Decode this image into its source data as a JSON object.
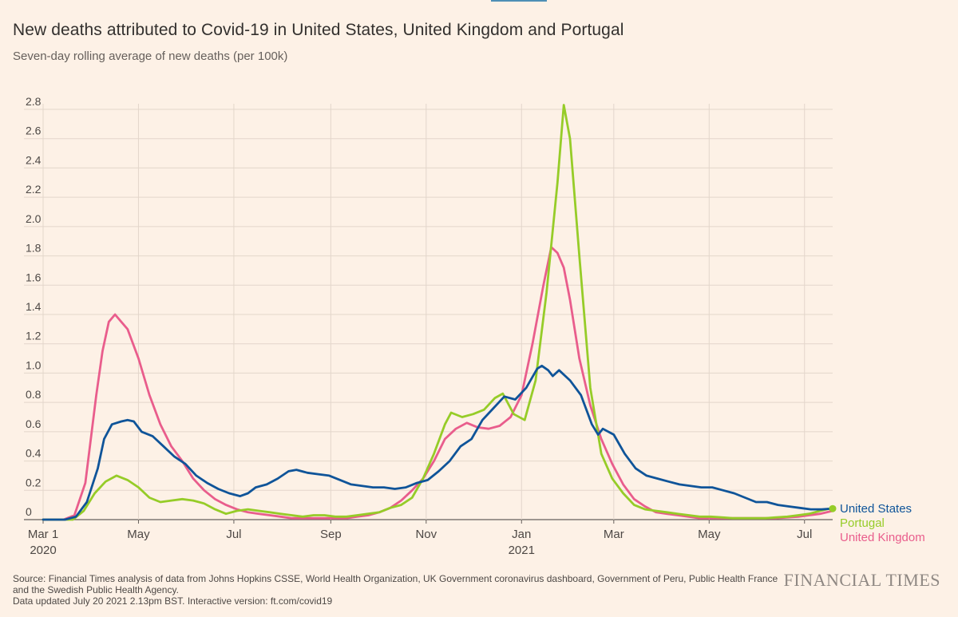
{
  "title": "New deaths attributed to Covid-19 in United States, United Kingdom and Portugal",
  "subtitle": "Seven-day rolling average of new deaths (per 100k)",
  "source_lines": [
    "Source: Financial Times analysis of data from Johns Hopkins CSSE, World Health Organization, UK Government coronavirus dashboard, Government of Peru, Public Health France",
    "and the Swedish Public Health Agency.",
    "Data updated July 20 2021 2.13pm BST. Interactive version: ft.com/covid19"
  ],
  "logo": "FINANCIAL TIMES",
  "chart_data": {
    "type": "line",
    "ylim": [
      0,
      2.8
    ],
    "grid": true,
    "y_ticks": [
      "0",
      "0.2",
      "0.4",
      "0.6",
      "0.8",
      "1.0",
      "1.2",
      "1.4",
      "1.6",
      "1.8",
      "2.0",
      "2.2",
      "2.4",
      "2.6",
      "2.8"
    ],
    "x_ticks": [
      {
        "date": "2020-03-01",
        "label": "Mar 1",
        "sublabel": "2020"
      },
      {
        "date": "2020-05-01",
        "label": "May",
        "sublabel": ""
      },
      {
        "date": "2020-07-01",
        "label": "Jul",
        "sublabel": ""
      },
      {
        "date": "2020-09-01",
        "label": "Sep",
        "sublabel": ""
      },
      {
        "date": "2020-11-01",
        "label": "Nov",
        "sublabel": ""
      },
      {
        "date": "2021-01-01",
        "label": "Jan",
        "sublabel": "2021"
      },
      {
        "date": "2021-03-01",
        "label": "Mar",
        "sublabel": ""
      },
      {
        "date": "2021-05-01",
        "label": "May",
        "sublabel": ""
      },
      {
        "date": "2021-07-01",
        "label": "Jul",
        "sublabel": ""
      }
    ],
    "x_range": [
      "2020-03-01",
      "2021-07-19"
    ],
    "series": [
      {
        "name": "United States",
        "color": "#0f5499",
        "points": [
          [
            "2020-03-01",
            0
          ],
          [
            "2020-03-15",
            0.0
          ],
          [
            "2020-03-22",
            0.02
          ],
          [
            "2020-03-29",
            0.12
          ],
          [
            "2020-04-05",
            0.35
          ],
          [
            "2020-04-09",
            0.55
          ],
          [
            "2020-04-14",
            0.65
          ],
          [
            "2020-04-20",
            0.67
          ],
          [
            "2020-04-24",
            0.68
          ],
          [
            "2020-04-28",
            0.67
          ],
          [
            "2020-05-03",
            0.6
          ],
          [
            "2020-05-10",
            0.57
          ],
          [
            "2020-05-17",
            0.5
          ],
          [
            "2020-05-24",
            0.43
          ],
          [
            "2020-05-31",
            0.38
          ],
          [
            "2020-06-07",
            0.3
          ],
          [
            "2020-06-14",
            0.25
          ],
          [
            "2020-06-21",
            0.21
          ],
          [
            "2020-06-28",
            0.18
          ],
          [
            "2020-07-05",
            0.16
          ],
          [
            "2020-07-10",
            0.18
          ],
          [
            "2020-07-15",
            0.22
          ],
          [
            "2020-07-22",
            0.24
          ],
          [
            "2020-07-29",
            0.28
          ],
          [
            "2020-08-05",
            0.33
          ],
          [
            "2020-08-10",
            0.34
          ],
          [
            "2020-08-17",
            0.32
          ],
          [
            "2020-08-24",
            0.31
          ],
          [
            "2020-08-31",
            0.3
          ],
          [
            "2020-09-07",
            0.27
          ],
          [
            "2020-09-14",
            0.24
          ],
          [
            "2020-09-21",
            0.23
          ],
          [
            "2020-09-28",
            0.22
          ],
          [
            "2020-10-05",
            0.22
          ],
          [
            "2020-10-12",
            0.21
          ],
          [
            "2020-10-19",
            0.22
          ],
          [
            "2020-10-26",
            0.25
          ],
          [
            "2020-11-02",
            0.27
          ],
          [
            "2020-11-09",
            0.33
          ],
          [
            "2020-11-16",
            0.4
          ],
          [
            "2020-11-23",
            0.5
          ],
          [
            "2020-11-30",
            0.55
          ],
          [
            "2020-12-07",
            0.68
          ],
          [
            "2020-12-14",
            0.76
          ],
          [
            "2020-12-21",
            0.84
          ],
          [
            "2020-12-28",
            0.82
          ],
          [
            "2021-01-04",
            0.9
          ],
          [
            "2021-01-11",
            1.03
          ],
          [
            "2021-01-14",
            1.05
          ],
          [
            "2021-01-18",
            1.02
          ],
          [
            "2021-01-21",
            0.98
          ],
          [
            "2021-01-25",
            1.02
          ],
          [
            "2021-02-01",
            0.95
          ],
          [
            "2021-02-08",
            0.85
          ],
          [
            "2021-02-15",
            0.65
          ],
          [
            "2021-02-19",
            0.58
          ],
          [
            "2021-02-22",
            0.62
          ],
          [
            "2021-03-01",
            0.58
          ],
          [
            "2021-03-08",
            0.45
          ],
          [
            "2021-03-15",
            0.35
          ],
          [
            "2021-03-22",
            0.3
          ],
          [
            "2021-03-29",
            0.28
          ],
          [
            "2021-04-05",
            0.26
          ],
          [
            "2021-04-12",
            0.24
          ],
          [
            "2021-04-19",
            0.23
          ],
          [
            "2021-04-26",
            0.22
          ],
          [
            "2021-05-03",
            0.22
          ],
          [
            "2021-05-10",
            0.2
          ],
          [
            "2021-05-17",
            0.18
          ],
          [
            "2021-05-24",
            0.15
          ],
          [
            "2021-05-31",
            0.12
          ],
          [
            "2021-06-07",
            0.12
          ],
          [
            "2021-06-14",
            0.1
          ],
          [
            "2021-06-21",
            0.09
          ],
          [
            "2021-06-28",
            0.08
          ],
          [
            "2021-07-05",
            0.07
          ],
          [
            "2021-07-12",
            0.07
          ],
          [
            "2021-07-19",
            0.075
          ]
        ]
      },
      {
        "name": "Portugal",
        "color": "#96cc28",
        "points": [
          [
            "2020-03-01",
            0
          ],
          [
            "2020-03-20",
            0.0
          ],
          [
            "2020-03-27",
            0.06
          ],
          [
            "2020-04-03",
            0.18
          ],
          [
            "2020-04-10",
            0.26
          ],
          [
            "2020-04-17",
            0.3
          ],
          [
            "2020-04-24",
            0.27
          ],
          [
            "2020-05-01",
            0.22
          ],
          [
            "2020-05-08",
            0.15
          ],
          [
            "2020-05-15",
            0.12
          ],
          [
            "2020-05-22",
            0.13
          ],
          [
            "2020-05-29",
            0.14
          ],
          [
            "2020-06-05",
            0.13
          ],
          [
            "2020-06-12",
            0.11
          ],
          [
            "2020-06-19",
            0.07
          ],
          [
            "2020-06-26",
            0.04
          ],
          [
            "2020-07-03",
            0.06
          ],
          [
            "2020-07-10",
            0.07
          ],
          [
            "2020-07-17",
            0.06
          ],
          [
            "2020-07-24",
            0.05
          ],
          [
            "2020-07-31",
            0.04
          ],
          [
            "2020-08-07",
            0.03
          ],
          [
            "2020-08-14",
            0.02
          ],
          [
            "2020-08-21",
            0.03
          ],
          [
            "2020-08-28",
            0.03
          ],
          [
            "2020-09-04",
            0.02
          ],
          [
            "2020-09-11",
            0.02
          ],
          [
            "2020-09-18",
            0.03
          ],
          [
            "2020-09-25",
            0.04
          ],
          [
            "2020-10-02",
            0.05
          ],
          [
            "2020-10-09",
            0.08
          ],
          [
            "2020-10-16",
            0.1
          ],
          [
            "2020-10-23",
            0.15
          ],
          [
            "2020-10-30",
            0.28
          ],
          [
            "2020-11-06",
            0.45
          ],
          [
            "2020-11-13",
            0.65
          ],
          [
            "2020-11-17",
            0.73
          ],
          [
            "2020-11-24",
            0.7
          ],
          [
            "2020-12-01",
            0.72
          ],
          [
            "2020-12-08",
            0.75
          ],
          [
            "2020-12-15",
            0.83
          ],
          [
            "2020-12-20",
            0.86
          ],
          [
            "2020-12-27",
            0.72
          ],
          [
            "2021-01-03",
            0.68
          ],
          [
            "2021-01-10",
            0.95
          ],
          [
            "2021-01-17",
            1.55
          ],
          [
            "2021-01-24",
            2.3
          ],
          [
            "2021-01-28",
            2.83
          ],
          [
            "2021-02-01",
            2.6
          ],
          [
            "2021-02-07",
            1.8
          ],
          [
            "2021-02-14",
            0.9
          ],
          [
            "2021-02-21",
            0.45
          ],
          [
            "2021-02-28",
            0.28
          ],
          [
            "2021-03-07",
            0.18
          ],
          [
            "2021-03-14",
            0.1
          ],
          [
            "2021-03-21",
            0.07
          ],
          [
            "2021-03-28",
            0.06
          ],
          [
            "2021-04-04",
            0.05
          ],
          [
            "2021-04-11",
            0.04
          ],
          [
            "2021-04-18",
            0.03
          ],
          [
            "2021-04-25",
            0.02
          ],
          [
            "2021-05-02",
            0.02
          ],
          [
            "2021-05-09",
            0.015
          ],
          [
            "2021-05-16",
            0.01
          ],
          [
            "2021-05-23",
            0.01
          ],
          [
            "2021-05-30",
            0.01
          ],
          [
            "2021-06-06",
            0.01
          ],
          [
            "2021-06-13",
            0.015
          ],
          [
            "2021-06-20",
            0.02
          ],
          [
            "2021-06-27",
            0.03
          ],
          [
            "2021-07-04",
            0.04
          ],
          [
            "2021-07-11",
            0.06
          ],
          [
            "2021-07-19",
            0.08
          ]
        ]
      },
      {
        "name": "United Kingdom",
        "color": "#e95d8c",
        "points": [
          [
            "2020-03-01",
            0
          ],
          [
            "2020-03-14",
            0.0
          ],
          [
            "2020-03-21",
            0.03
          ],
          [
            "2020-03-28",
            0.25
          ],
          [
            "2020-04-04",
            0.85
          ],
          [
            "2020-04-08",
            1.15
          ],
          [
            "2020-04-12",
            1.35
          ],
          [
            "2020-04-16",
            1.4
          ],
          [
            "2020-04-20",
            1.35
          ],
          [
            "2020-04-24",
            1.3
          ],
          [
            "2020-05-01",
            1.1
          ],
          [
            "2020-05-08",
            0.85
          ],
          [
            "2020-05-15",
            0.65
          ],
          [
            "2020-05-22",
            0.5
          ],
          [
            "2020-05-29",
            0.4
          ],
          [
            "2020-06-05",
            0.28
          ],
          [
            "2020-06-12",
            0.2
          ],
          [
            "2020-06-19",
            0.14
          ],
          [
            "2020-06-26",
            0.1
          ],
          [
            "2020-07-03",
            0.07
          ],
          [
            "2020-07-10",
            0.05
          ],
          [
            "2020-07-17",
            0.04
          ],
          [
            "2020-07-24",
            0.03
          ],
          [
            "2020-07-31",
            0.02
          ],
          [
            "2020-08-07",
            0.01
          ],
          [
            "2020-08-14",
            0.01
          ],
          [
            "2020-08-21",
            0.01
          ],
          [
            "2020-08-28",
            0.01
          ],
          [
            "2020-09-04",
            0.01
          ],
          [
            "2020-09-11",
            0.01
          ],
          [
            "2020-09-18",
            0.02
          ],
          [
            "2020-09-25",
            0.03
          ],
          [
            "2020-10-02",
            0.05
          ],
          [
            "2020-10-09",
            0.08
          ],
          [
            "2020-10-16",
            0.13
          ],
          [
            "2020-10-23",
            0.2
          ],
          [
            "2020-10-30",
            0.28
          ],
          [
            "2020-11-06",
            0.4
          ],
          [
            "2020-11-13",
            0.55
          ],
          [
            "2020-11-20",
            0.62
          ],
          [
            "2020-11-27",
            0.66
          ],
          [
            "2020-12-04",
            0.63
          ],
          [
            "2020-12-11",
            0.62
          ],
          [
            "2020-12-18",
            0.64
          ],
          [
            "2020-12-25",
            0.7
          ],
          [
            "2021-01-01",
            0.85
          ],
          [
            "2021-01-08",
            1.2
          ],
          [
            "2021-01-15",
            1.6
          ],
          [
            "2021-01-20",
            1.86
          ],
          [
            "2021-01-24",
            1.82
          ],
          [
            "2021-01-28",
            1.72
          ],
          [
            "2021-02-01",
            1.5
          ],
          [
            "2021-02-07",
            1.1
          ],
          [
            "2021-02-14",
            0.78
          ],
          [
            "2021-02-21",
            0.55
          ],
          [
            "2021-02-28",
            0.38
          ],
          [
            "2021-03-07",
            0.24
          ],
          [
            "2021-03-14",
            0.14
          ],
          [
            "2021-03-21",
            0.09
          ],
          [
            "2021-03-28",
            0.05
          ],
          [
            "2021-04-04",
            0.04
          ],
          [
            "2021-04-11",
            0.03
          ],
          [
            "2021-04-18",
            0.02
          ],
          [
            "2021-04-25",
            0.01
          ],
          [
            "2021-05-02",
            0.01
          ],
          [
            "2021-05-09",
            0.01
          ],
          [
            "2021-05-16",
            0.01
          ],
          [
            "2021-05-23",
            0.01
          ],
          [
            "2021-05-30",
            0.01
          ],
          [
            "2021-06-06",
            0.01
          ],
          [
            "2021-06-13",
            0.01
          ],
          [
            "2021-06-20",
            0.015
          ],
          [
            "2021-06-27",
            0.02
          ],
          [
            "2021-07-04",
            0.03
          ],
          [
            "2021-07-11",
            0.04
          ],
          [
            "2021-07-19",
            0.06
          ]
        ]
      }
    ]
  }
}
